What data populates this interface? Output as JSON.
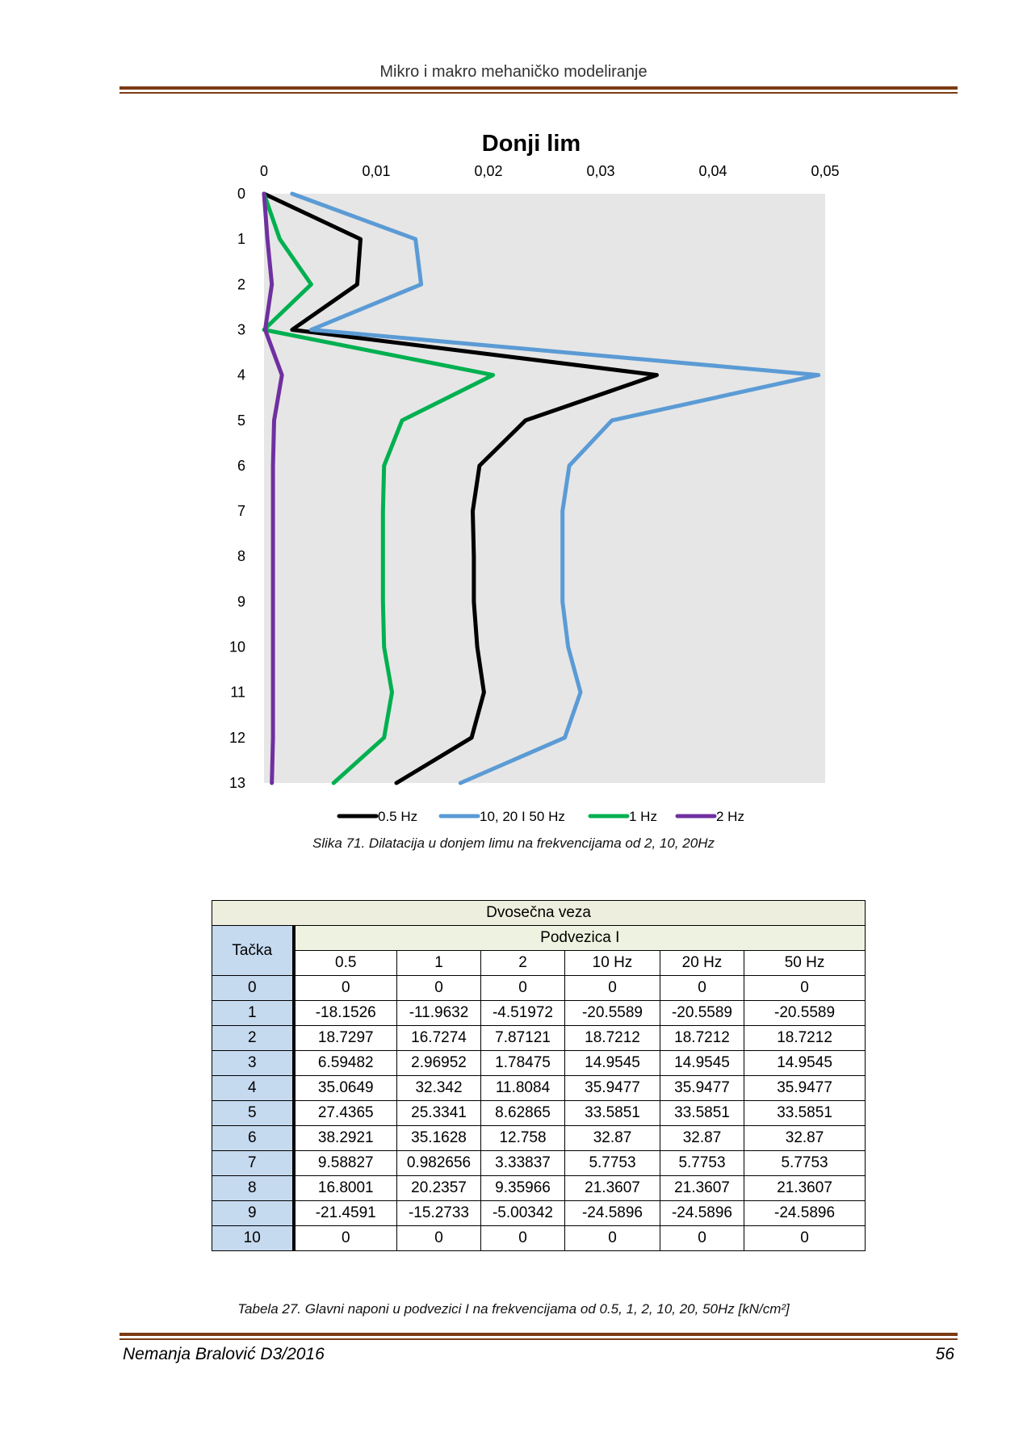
{
  "header": {
    "title": "Mikro i makro mehaničko modeliranje"
  },
  "figure_caption": "Slika 71. Dilatacija u donjem  limu na frekvencijama od 2, 10, 20Hz",
  "chart_data": {
    "type": "line",
    "title": "Donji lim",
    "x_tick_labels": [
      "0",
      "0,01",
      "0,02",
      "0,03",
      "0,04",
      "0,05"
    ],
    "x_ticks": [
      0,
      0.01,
      0.02,
      0.03,
      0.04,
      0.05
    ],
    "xlim": [
      0,
      0.05
    ],
    "x_axis_position": "top",
    "y_tick_labels": [
      "0",
      "1",
      "2",
      "3",
      "4",
      "5",
      "6",
      "7",
      "8",
      "9",
      "10",
      "11",
      "12",
      "13"
    ],
    "categories": [
      0,
      1,
      2,
      3,
      4,
      5,
      6,
      7,
      8,
      9,
      10,
      11,
      12,
      13
    ],
    "y_reversed": true,
    "grid": false,
    "plot_background": "#e6e6e6",
    "legend_position": "bottom",
    "series": [
      {
        "name": "0.5 Hz",
        "color": "#000000",
        "values": [
          0,
          0.0086,
          0.0083,
          0.0025,
          0.035,
          0.0233,
          0.0192,
          0.0186,
          0.0187,
          0.0187,
          0.019,
          0.0196,
          0.0185,
          0.0118
        ]
      },
      {
        "name": "10, 20 I 50 Hz",
        "color": "#5b9bd5",
        "values": [
          0.0025,
          0.0135,
          0.014,
          0.0042,
          0.0494,
          0.031,
          0.0272,
          0.0266,
          0.0266,
          0.0266,
          0.0271,
          0.0282,
          0.0268,
          0.0175
        ]
      },
      {
        "name": "1 Hz",
        "color": "#00b050",
        "values": [
          0,
          0.0014,
          0.0042,
          0,
          0.0204,
          0.0123,
          0.0107,
          0.0106,
          0.0106,
          0.0106,
          0.0107,
          0.0114,
          0.0107,
          0.0062
        ]
      },
      {
        "name": "2 Hz",
        "color": "#7030a0",
        "values": [
          0,
          0.0003,
          0.0007,
          0.0001,
          0.0016,
          0.0009,
          0.0008,
          0.0008,
          0.0008,
          0.0008,
          0.0008,
          0.0008,
          0.0008,
          0.0007
        ]
      }
    ]
  },
  "table": {
    "title": "Dvosečna veza",
    "row_header": "Tačka",
    "group_header": "Podvezica I",
    "columns": [
      "0.5",
      "1",
      "2",
      "10 Hz",
      "20 Hz",
      "50 Hz"
    ],
    "rows": [
      {
        "tacka": "0",
        "values": [
          "0",
          "0",
          "0",
          "0",
          "0",
          "0"
        ]
      },
      {
        "tacka": "1",
        "values": [
          "-18.1526",
          "-11.9632",
          "-4.51972",
          "-20.5589",
          "-20.5589",
          "-20.5589"
        ]
      },
      {
        "tacka": "2",
        "values": [
          "18.7297",
          "16.7274",
          "7.87121",
          "18.7212",
          "18.7212",
          "18.7212"
        ]
      },
      {
        "tacka": "3",
        "values": [
          "6.59482",
          "2.96952",
          "1.78475",
          "14.9545",
          "14.9545",
          "14.9545"
        ]
      },
      {
        "tacka": "4",
        "values": [
          "35.0649",
          "32.342",
          "11.8084",
          "35.9477",
          "35.9477",
          "35.9477"
        ]
      },
      {
        "tacka": "5",
        "values": [
          "27.4365",
          "25.3341",
          "8.62865",
          "33.5851",
          "33.5851",
          "33.5851"
        ]
      },
      {
        "tacka": "6",
        "values": [
          "38.2921",
          "35.1628",
          "12.758",
          "32.87",
          "32.87",
          "32.87"
        ]
      },
      {
        "tacka": "7",
        "values": [
          "9.58827",
          "0.982656",
          "3.33837",
          "5.7753",
          "5.7753",
          "5.7753"
        ]
      },
      {
        "tacka": "8",
        "values": [
          "16.8001",
          "20.2357",
          "9.35966",
          "21.3607",
          "21.3607",
          "21.3607"
        ]
      },
      {
        "tacka": "9",
        "values": [
          "-21.4591",
          "-15.2733",
          "-5.00342",
          "-24.5896",
          "-24.5896",
          "-24.5896"
        ]
      },
      {
        "tacka": "10",
        "values": [
          "0",
          "0",
          "0",
          "0",
          "0",
          "0"
        ]
      }
    ],
    "colors": {
      "band": "#eeeede",
      "sub_band": "#eef2e0",
      "tacka_fill": "#c5d9ef"
    }
  },
  "table_caption": "Tabela 27. Glavni naponi u podvezici I na frekvencijama od 0.5, 1, 2, 10, 20, 50Hz  [kN/cm²]",
  "footer": {
    "author": "Nemanja Bralović D3/2016",
    "page_number": "56"
  },
  "rule_color": "#7b3b13"
}
